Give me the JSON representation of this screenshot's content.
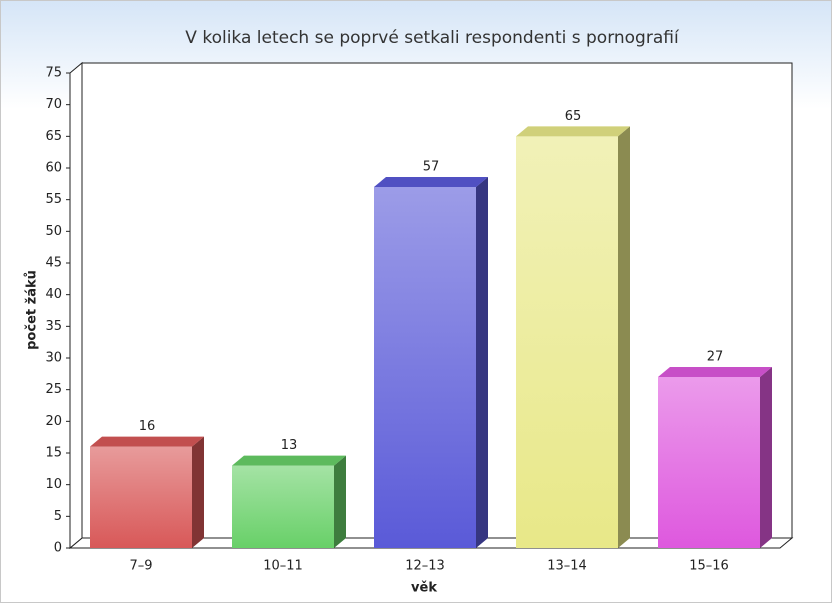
{
  "chart_data": {
    "type": "bar3d",
    "title": "V kolika letech se poprvé setkali respondenti s pornografií",
    "x_label": "věk",
    "y_label": "počet žáků",
    "categories": [
      "7–9",
      "10–11",
      "12–13",
      "13–14",
      "15–16"
    ],
    "values": [
      16,
      13,
      57,
      65,
      27
    ],
    "colors": [
      "#d85858",
      "#68d068",
      "#5a5ad8",
      "#e8e888",
      "#de58de"
    ],
    "ylim": [
      0,
      75
    ],
    "yticks": [
      0,
      5,
      10,
      15,
      20,
      25,
      30,
      35,
      40,
      45,
      50,
      55,
      60,
      65,
      70,
      75
    ],
    "grid": false
  }
}
